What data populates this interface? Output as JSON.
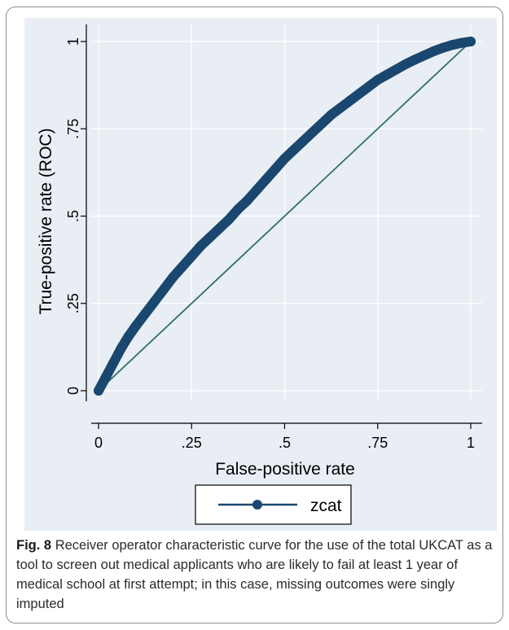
{
  "colors": {
    "plot_background": "#e8eef4",
    "panel_background": "#ffffff",
    "roc_curve": "#1a476f",
    "reference_line": "#2e7065",
    "grid": "#ffffff",
    "axis": "#000000"
  },
  "caption": {
    "label": "Fig. 8",
    "text": "Receiver operator characteristic curve for the use of the total UKCAT as a tool to screen out medical applicants who are likely to fail at least 1 year of medical school at first attempt; in this case, missing outcomes were singly imputed"
  },
  "chart_data": {
    "type": "line",
    "title": "",
    "xlabel": "False-positive rate",
    "ylabel": "True-positive rate (ROC)",
    "xlim": [
      0,
      1
    ],
    "ylim": [
      0,
      1
    ],
    "x_ticks": [
      0,
      0.25,
      0.5,
      0.75,
      1
    ],
    "x_tick_labels": [
      "0",
      ".25",
      ".5",
      ".75",
      "1"
    ],
    "y_ticks": [
      0,
      0.25,
      0.5,
      0.75,
      1
    ],
    "y_tick_labels": [
      "0",
      ".25",
      ".5",
      ".75",
      "1"
    ],
    "grid": true,
    "legend_position": "bottom",
    "series": [
      {
        "name": "zcat",
        "style": "line-with-markers",
        "x": [
          0,
          0.02,
          0.04,
          0.06,
          0.08,
          0.1,
          0.125,
          0.15,
          0.175,
          0.2,
          0.225,
          0.25,
          0.275,
          0.3,
          0.325,
          0.35,
          0.375,
          0.4,
          0.425,
          0.45,
          0.475,
          0.5,
          0.525,
          0.55,
          0.575,
          0.6,
          0.625,
          0.65,
          0.675,
          0.7,
          0.725,
          0.75,
          0.775,
          0.8,
          0.825,
          0.85,
          0.875,
          0.9,
          0.925,
          0.95,
          0.975,
          1
        ],
        "y": [
          0,
          0.04,
          0.08,
          0.12,
          0.155,
          0.185,
          0.22,
          0.255,
          0.29,
          0.325,
          0.355,
          0.385,
          0.415,
          0.44,
          0.465,
          0.49,
          0.52,
          0.545,
          0.575,
          0.605,
          0.635,
          0.665,
          0.69,
          0.715,
          0.74,
          0.765,
          0.79,
          0.81,
          0.83,
          0.85,
          0.87,
          0.89,
          0.905,
          0.92,
          0.935,
          0.948,
          0.96,
          0.972,
          0.982,
          0.99,
          0.996,
          1
        ]
      },
      {
        "name": "",
        "style": "reference-line",
        "x": [
          0,
          1
        ],
        "y": [
          0,
          1
        ]
      }
    ],
    "legend": [
      {
        "label": "zcat"
      }
    ]
  }
}
